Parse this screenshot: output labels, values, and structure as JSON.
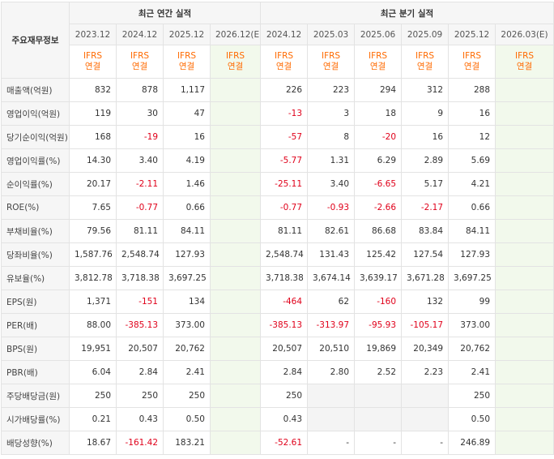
{
  "header": {
    "corner_label": "주요재무정보",
    "annual_title": "최근 연간 실적",
    "quarterly_title": "최근 분기 실적",
    "annual_periods": [
      "2023.12",
      "2024.12",
      "2025.12",
      "2026.12(E)"
    ],
    "quarterly_periods": [
      "2024.12",
      "2025.03",
      "2025.06",
      "2025.09",
      "2025.12",
      "2026.03(E)"
    ],
    "basis_line1": "IFRS",
    "basis_line2": "연결"
  },
  "rows": [
    {
      "label": "매출액(억원)",
      "group_start": false,
      "annual": [
        "832",
        "878",
        "1,117",
        ""
      ],
      "quarterly": [
        "226",
        "223",
        "294",
        "312",
        "288",
        ""
      ]
    },
    {
      "label": "영업이익(억원)",
      "group_start": false,
      "annual": [
        "119",
        "30",
        "47",
        ""
      ],
      "quarterly": [
        "-13",
        "3",
        "18",
        "9",
        "16",
        ""
      ]
    },
    {
      "label": "당기순이익(억원)",
      "group_start": false,
      "annual": [
        "168",
        "-19",
        "16",
        ""
      ],
      "quarterly": [
        "-57",
        "8",
        "-20",
        "16",
        "12",
        ""
      ]
    },
    {
      "label": "영업이익률(%)",
      "group_start": true,
      "annual": [
        "14.30",
        "3.40",
        "4.19",
        ""
      ],
      "quarterly": [
        "-5.77",
        "1.31",
        "6.29",
        "2.89",
        "5.69",
        ""
      ]
    },
    {
      "label": "순이익률(%)",
      "group_start": false,
      "annual": [
        "20.17",
        "-2.11",
        "1.46",
        ""
      ],
      "quarterly": [
        "-25.11",
        "3.40",
        "-6.65",
        "5.17",
        "4.21",
        ""
      ]
    },
    {
      "label": "ROE(%)",
      "group_start": false,
      "annual": [
        "7.65",
        "-0.77",
        "0.66",
        ""
      ],
      "quarterly": [
        "-0.77",
        "-0.93",
        "-2.66",
        "-2.17",
        "0.66",
        ""
      ]
    },
    {
      "label": "부채비율(%)",
      "group_start": true,
      "annual": [
        "79.56",
        "81.11",
        "84.11",
        ""
      ],
      "quarterly": [
        "81.11",
        "82.61",
        "86.68",
        "83.84",
        "84.11",
        ""
      ]
    },
    {
      "label": "당좌비율(%)",
      "group_start": false,
      "annual": [
        "1,587.76",
        "2,548.74",
        "127.93",
        ""
      ],
      "quarterly": [
        "2,548.74",
        "131.43",
        "125.42",
        "127.54",
        "127.93",
        ""
      ]
    },
    {
      "label": "유보율(%)",
      "group_start": false,
      "annual": [
        "3,812.78",
        "3,718.38",
        "3,697.25",
        ""
      ],
      "quarterly": [
        "3,718.38",
        "3,674.14",
        "3,639.17",
        "3,671.28",
        "3,697.25",
        ""
      ]
    },
    {
      "label": "EPS(원)",
      "group_start": true,
      "annual": [
        "1,371",
        "-151",
        "134",
        ""
      ],
      "quarterly": [
        "-464",
        "62",
        "-160",
        "132",
        "99",
        ""
      ]
    },
    {
      "label": "PER(배)",
      "group_start": false,
      "annual": [
        "88.00",
        "-385.13",
        "373.00",
        ""
      ],
      "quarterly": [
        "-385.13",
        "-313.97",
        "-95.93",
        "-105.17",
        "373.00",
        ""
      ]
    },
    {
      "label": "BPS(원)",
      "group_start": false,
      "annual": [
        "19,951",
        "20,507",
        "20,762",
        ""
      ],
      "quarterly": [
        "20,507",
        "20,510",
        "19,869",
        "20,349",
        "20,762",
        ""
      ]
    },
    {
      "label": "PBR(배)",
      "group_start": false,
      "annual": [
        "6.04",
        "2.84",
        "2.41",
        ""
      ],
      "quarterly": [
        "2.84",
        "2.80",
        "2.52",
        "2.23",
        "2.41",
        ""
      ]
    },
    {
      "label": "주당배당금(원)",
      "group_start": true,
      "annual": [
        "250",
        "250",
        "250",
        ""
      ],
      "quarterly": [
        "250",
        null,
        null,
        null,
        "250",
        ""
      ]
    },
    {
      "label": "시가배당률(%)",
      "group_start": false,
      "annual": [
        "0.21",
        "0.43",
        "0.50",
        ""
      ],
      "quarterly": [
        "0.43",
        null,
        null,
        null,
        "0.50",
        ""
      ]
    },
    {
      "label": "배당성향(%)",
      "group_start": false,
      "annual": [
        "18.67",
        "-161.42",
        "183.21",
        ""
      ],
      "quarterly": [
        "-52.61",
        "-",
        "-",
        "-",
        "246.89",
        ""
      ]
    }
  ],
  "colors": {
    "negative": "#e0001a",
    "ifrs_label": "#ff6a00",
    "estimate_bg": "#f2f9ec",
    "header_bg": "#f6f6f6"
  }
}
